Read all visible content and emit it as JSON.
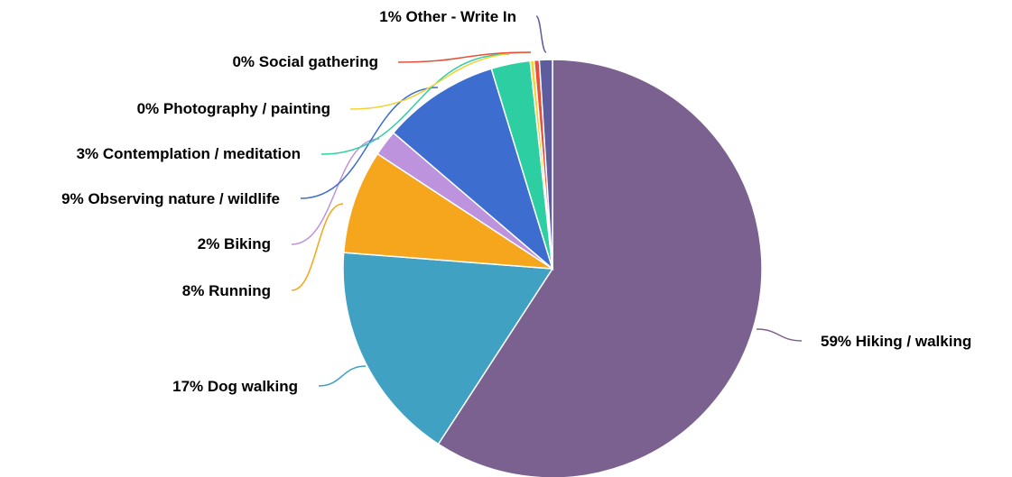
{
  "chart_data": {
    "type": "pie",
    "slices": [
      {
        "label": "Hiking / walking",
        "value": 59,
        "percent_label": "59%",
        "color": "#7b618f"
      },
      {
        "label": "Dog walking",
        "value": 17,
        "percent_label": "17%",
        "color": "#40a1c2"
      },
      {
        "label": "Running",
        "value": 8,
        "percent_label": "8%",
        "color": "#f5a61d"
      },
      {
        "label": "Biking",
        "value": 2,
        "percent_label": "2%",
        "color": "#be93de"
      },
      {
        "label": "Observing nature / wildlife",
        "value": 9,
        "percent_label": "9%",
        "color": "#3c6dcf"
      },
      {
        "label": "Contemplation / meditation",
        "value": 3,
        "percent_label": "3%",
        "color": "#2dcfa2"
      },
      {
        "label": "Photography / painting",
        "value": 0.3,
        "percent_label": "0%",
        "color": "#f5d132"
      },
      {
        "label": "Social gathering",
        "value": 0.4,
        "percent_label": "0%",
        "color": "#e84e3b"
      },
      {
        "label": "Other - Write In",
        "value": 1,
        "percent_label": "1%",
        "color": "#5c5c9e"
      }
    ]
  }
}
